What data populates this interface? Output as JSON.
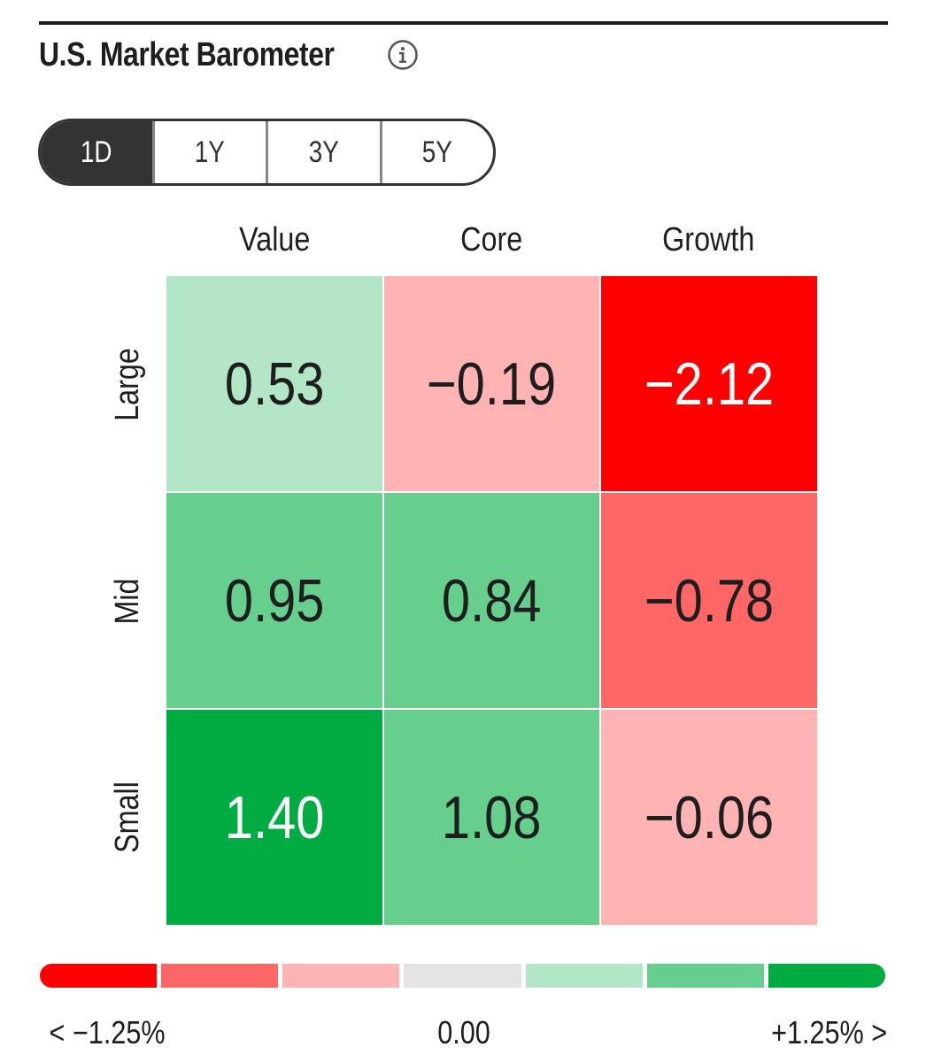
{
  "widget": {
    "title": "U.S. Market Barometer",
    "info_icon": "info-icon"
  },
  "tabs": [
    {
      "label": "1D",
      "active": true
    },
    {
      "label": "1Y",
      "active": false
    },
    {
      "label": "3Y",
      "active": false
    },
    {
      "label": "5Y",
      "active": false
    }
  ],
  "chart_data": {
    "type": "heatmap",
    "columns": [
      "Value",
      "Core",
      "Growth"
    ],
    "rows": [
      "Large",
      "Mid",
      "Small"
    ],
    "values": [
      [
        "0.53",
        "−0.19",
        "−2.12"
      ],
      [
        "0.95",
        "0.84",
        "−0.78"
      ],
      [
        "1.40",
        "1.08",
        "−0.06"
      ]
    ],
    "cell_colors": [
      [
        "#b3e6c6",
        "#ffb3b3",
        "#ff0000"
      ],
      [
        "#66cf8e",
        "#66cf8e",
        "#ff6666"
      ],
      [
        "#00ab41",
        "#66cf8e",
        "#ffb3b3"
      ]
    ],
    "cell_text_colors": [
      [
        "#1e1e1e",
        "#1e1e1e",
        "#ffffff"
      ],
      [
        "#1e1e1e",
        "#1e1e1e",
        "#1e1e1e"
      ],
      [
        "#ffffff",
        "#1e1e1e",
        "#1e1e1e"
      ]
    ],
    "legend": {
      "colors": [
        "#ff0000",
        "#ff6666",
        "#ffb3b3",
        "#e4e4e4",
        "#b3e6c6",
        "#66cf8e",
        "#00ab41"
      ],
      "min_label": "< −1.25%",
      "mid_label": "0.00",
      "max_label": "+1.25% >"
    }
  }
}
